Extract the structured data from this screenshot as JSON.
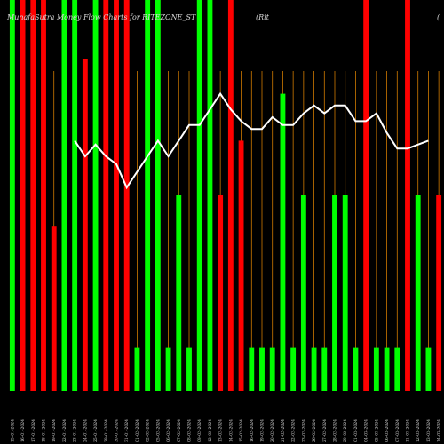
{
  "chart_data": {
    "type": "bar",
    "title": "MunafaSutra Money Flow Charts for RITEZONE_ST",
    "title_right": "(Rit",
    "title_far_right": "(",
    "ylim": [
      0,
      100
    ],
    "bar_values": [
      100,
      100,
      100,
      100,
      42,
      100,
      100,
      85,
      100,
      100,
      100,
      100,
      11,
      100,
      100,
      11,
      50,
      11,
      100,
      100,
      50,
      100,
      64,
      11,
      11,
      11,
      76,
      11,
      50,
      11,
      11,
      50,
      50,
      11,
      100,
      11,
      11,
      11,
      100,
      50,
      11,
      50
    ],
    "bar_colors": [
      "green",
      "red",
      "red",
      "red",
      "red",
      "green",
      "green",
      "red",
      "green",
      "red",
      "red",
      "red",
      "green",
      "green",
      "green",
      "green",
      "green",
      "green",
      "green",
      "green",
      "red",
      "red",
      "red",
      "green",
      "green",
      "green",
      "green",
      "green",
      "green",
      "green",
      "green",
      "green",
      "green",
      "green",
      "red",
      "green",
      "green",
      "green",
      "red",
      "green",
      "green",
      "red"
    ],
    "line_x_start": 6,
    "line_values": [
      64,
      60,
      63,
      60,
      58,
      52,
      56,
      60,
      64,
      60,
      64,
      68,
      68,
      72,
      76,
      72,
      69,
      67,
      67,
      70,
      68,
      68,
      71,
      73,
      71,
      73,
      73,
      69,
      69,
      71,
      66,
      62,
      62,
      63,
      64
    ],
    "x_labels": [
      "15-01-2024",
      "16-01-2024",
      "17-01-2024",
      "18-01-2024",
      "19-01-2024",
      "22-01-2024",
      "23-01-2024",
      "24-01-2024",
      "25-01-2024",
      "29-01-2024",
      "30-01-2024",
      "31-01-2024",
      "01-02-2024",
      "02-02-2024",
      "05-02-2024",
      "06-02-2024",
      "07-02-2024",
      "08-02-2024",
      "09-02-2024",
      "12-02-2024",
      "13-02-2024",
      "14-02-2024",
      "15-02-2024",
      "16-02-2024",
      "19-02-2024",
      "20-02-2024",
      "21-02-2024",
      "22-02-2024",
      "23-02-2024",
      "26-02-2024",
      "27-02-2024",
      "28-02-2024",
      "29-02-2024",
      "01-03-2024",
      "04-03-2024",
      "05-03-2024",
      "06-03-2024",
      "07-03-2024",
      "11-03-2024",
      "12-03-2024",
      "13-03-2024",
      "14-03-2024"
    ],
    "colors": {
      "green": "#00ff00",
      "red": "#ff0000",
      "grid": "#d07a00",
      "line": "#ffffff",
      "text": "#d8d8d8"
    }
  }
}
